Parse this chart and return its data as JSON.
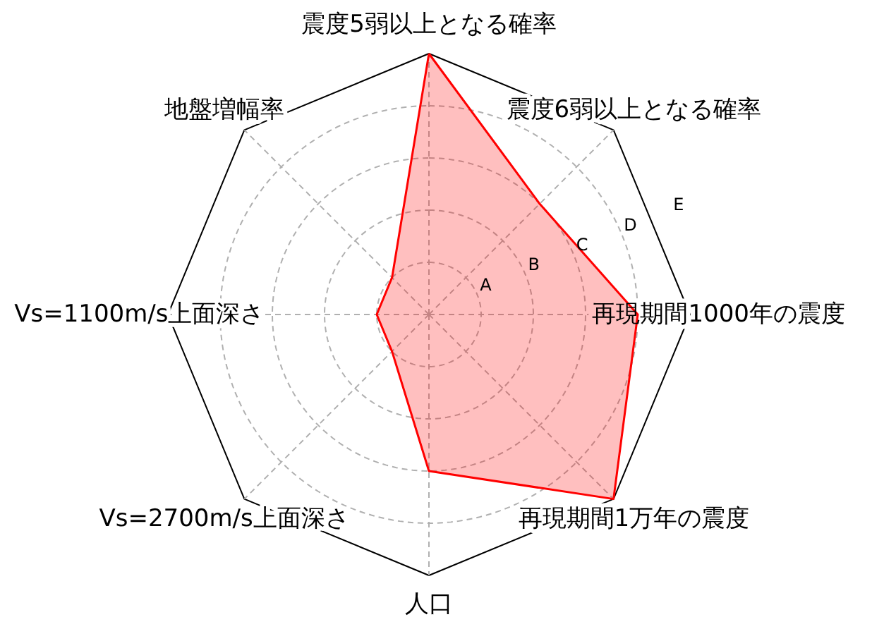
{
  "chart_data": {
    "type": "radar",
    "categories": [
      "震度5弱以上となる確率",
      "震度6弱以上となる確率",
      "再現期間1000年の震度",
      "再現期間1万年の震度",
      "人口",
      "Vs=2700m/s上面深さ",
      "Vs=1100m/s上面深さ",
      "地盤増幅率"
    ],
    "series": [
      {
        "color": "#ff0000",
        "values": [
          5,
          3,
          4,
          5,
          3,
          1,
          1,
          1
        ]
      }
    ],
    "ylim": [
      0,
      5
    ],
    "yticks": [
      {
        "value": 1,
        "label": "A"
      },
      {
        "value": 2,
        "label": "B"
      },
      {
        "value": 3,
        "label": "C"
      },
      {
        "value": 4,
        "label": "D"
      },
      {
        "value": 5,
        "label": "E"
      }
    ],
    "grid": true
  }
}
